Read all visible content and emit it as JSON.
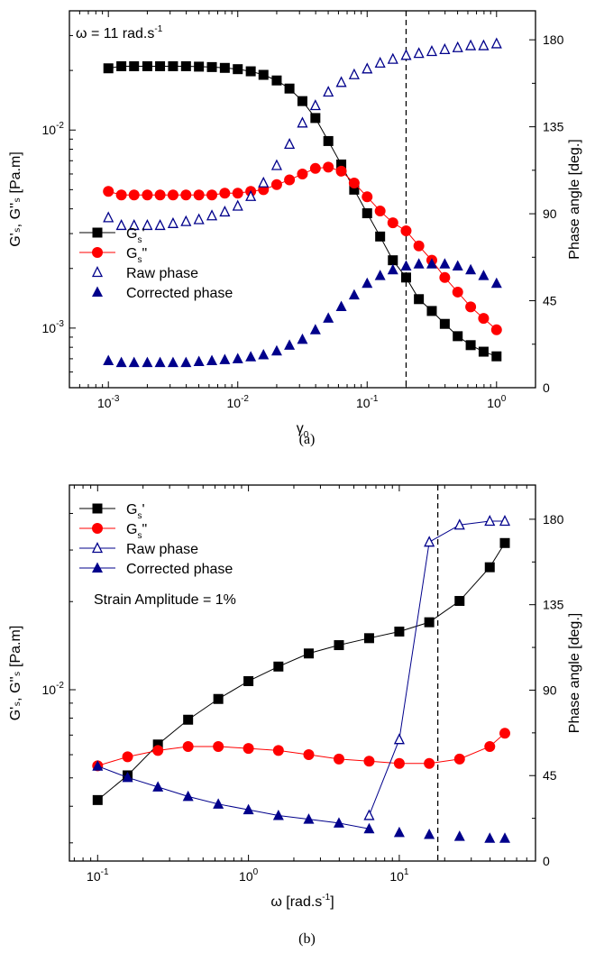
{
  "chart_data": [
    {
      "type": "scatter",
      "panel_label": "(a)",
      "annotation": "ω = 11 rad.s",
      "annotation_sup": "-1",
      "x_scale": "log",
      "y_scale": "log",
      "xlim": [
        0.0005,
        2
      ],
      "ylim": [
        0.0005,
        0.04
      ],
      "y2lim": [
        0,
        195
      ],
      "x_ticks": [
        0.001,
        0.01,
        0.1,
        1
      ],
      "y_ticks": [
        0.001,
        0.01
      ],
      "y2_ticks": [
        0,
        45,
        90,
        135,
        180
      ],
      "xlabel": "γ",
      "xlabel_sub": "0",
      "ylabel": "G'ₛ, G''ₛ [Pa.m]",
      "y2label": "Phase angle [deg.]",
      "vline_x": 0.2,
      "legend_position": "center-left",
      "series": [
        {
          "name": "Gs'",
          "axis": "left",
          "marker": "square",
          "color": "#000000",
          "line": true,
          "x": [
            0.001,
            0.00126,
            0.00158,
            0.002,
            0.00251,
            0.00316,
            0.00398,
            0.00501,
            0.00631,
            0.00794,
            0.01,
            0.0126,
            0.0158,
            0.02,
            0.0251,
            0.0316,
            0.0398,
            0.0501,
            0.0631,
            0.0794,
            0.1,
            0.126,
            0.158,
            0.2,
            0.251,
            0.316,
            0.398,
            0.501,
            0.631,
            0.794,
            1.0
          ],
          "values": [
            0.0205,
            0.021,
            0.021,
            0.021,
            0.021,
            0.021,
            0.021,
            0.0209,
            0.0208,
            0.0206,
            0.0203,
            0.0198,
            0.019,
            0.0178,
            0.0162,
            0.014,
            0.0115,
            0.0088,
            0.0067,
            0.005,
            0.0038,
            0.0029,
            0.0022,
            0.0018,
            0.0014,
            0.00122,
            0.00105,
            0.00091,
            0.00082,
            0.00076,
            0.00072
          ]
        },
        {
          "name": "Gs\"",
          "axis": "left",
          "marker": "circle",
          "color": "#ff0000",
          "line": true,
          "x": [
            0.001,
            0.00126,
            0.00158,
            0.002,
            0.00251,
            0.00316,
            0.00398,
            0.00501,
            0.00631,
            0.00794,
            0.01,
            0.0126,
            0.0158,
            0.02,
            0.0251,
            0.0316,
            0.0398,
            0.0501,
            0.0631,
            0.0794,
            0.1,
            0.126,
            0.158,
            0.2,
            0.251,
            0.316,
            0.398,
            0.501,
            0.631,
            0.794,
            1.0
          ],
          "values": [
            0.0049,
            0.0047,
            0.0047,
            0.0047,
            0.0047,
            0.0047,
            0.0047,
            0.0047,
            0.0047,
            0.0048,
            0.0048,
            0.0049,
            0.005,
            0.0053,
            0.0056,
            0.006,
            0.0064,
            0.0065,
            0.0062,
            0.0054,
            0.0046,
            0.0039,
            0.0034,
            0.0031,
            0.0026,
            0.0022,
            0.0018,
            0.00152,
            0.00128,
            0.00112,
            0.00098
          ]
        },
        {
          "name": "Raw phase",
          "axis": "right",
          "marker": "triangle-open",
          "color": "#00008b",
          "line": false,
          "x": [
            0.001,
            0.00126,
            0.00158,
            0.002,
            0.00251,
            0.00316,
            0.00398,
            0.00501,
            0.00631,
            0.00794,
            0.01,
            0.0126,
            0.0158,
            0.02,
            0.0251,
            0.0316,
            0.0398,
            0.0501,
            0.0631,
            0.0794,
            0.1,
            0.126,
            0.158,
            0.2,
            0.251,
            0.316,
            0.398,
            0.501,
            0.631,
            0.794,
            1.0
          ],
          "values": [
            88,
            84,
            84,
            84,
            84,
            85,
            86,
            87,
            89,
            91,
            94,
            99,
            106,
            115,
            126,
            137,
            146,
            153,
            158,
            162,
            165,
            168,
            170,
            172,
            173,
            174,
            175,
            176,
            177,
            177,
            178
          ]
        },
        {
          "name": "Corrected phase",
          "axis": "right",
          "marker": "triangle",
          "color": "#00008b",
          "line": false,
          "x": [
            0.001,
            0.00126,
            0.00158,
            0.002,
            0.00251,
            0.00316,
            0.00398,
            0.00501,
            0.00631,
            0.00794,
            0.01,
            0.0126,
            0.0158,
            0.02,
            0.0251,
            0.0316,
            0.0398,
            0.0501,
            0.0631,
            0.0794,
            0.1,
            0.126,
            0.158,
            0.2,
            0.251,
            0.316,
            0.398,
            0.501,
            0.631,
            0.794,
            1.0
          ],
          "values": [
            14,
            13,
            13,
            13,
            13,
            13,
            13,
            13.5,
            14,
            14.5,
            15,
            16,
            17,
            19,
            22,
            25,
            30,
            36,
            42,
            48,
            54,
            58,
            61,
            63,
            64,
            64,
            64,
            63,
            61,
            58,
            54
          ]
        }
      ]
    },
    {
      "type": "line",
      "panel_label": "(b)",
      "annotation": "Strain Amplitude = 1%",
      "x_scale": "log",
      "y_scale": "log",
      "xlim": [
        0.065,
        80
      ],
      "ylim": [
        0.0026,
        0.05
      ],
      "y2lim": [
        0,
        198
      ],
      "x_ticks": [
        0.1,
        1,
        10
      ],
      "y_ticks": [
        0.01
      ],
      "y2_ticks": [
        0,
        45,
        90,
        135,
        180
      ],
      "xlabel": "ω [rad.s",
      "xlabel_sup": "-1",
      "xlabel_end": "]",
      "ylabel": "G'ₛ, G''ₛ [Pa.m]",
      "y2label": "Phase angle [deg.]",
      "vline_x": 18,
      "legend_position": "top-left",
      "series": [
        {
          "name": "Gs'",
          "axis": "left",
          "marker": "square",
          "color": "#000000",
          "line": true,
          "x": [
            0.1,
            0.158,
            0.251,
            0.398,
            0.631,
            1.0,
            1.58,
            2.51,
            3.98,
            6.31,
            10.0,
            15.8,
            25.1,
            39.8,
            50.1
          ],
          "values": [
            0.0042,
            0.0051,
            0.0065,
            0.0079,
            0.0093,
            0.0107,
            0.012,
            0.0133,
            0.0142,
            0.015,
            0.0158,
            0.017,
            0.0201,
            0.0262,
            0.0317
          ]
        },
        {
          "name": "Gs\"",
          "axis": "left",
          "marker": "circle",
          "color": "#ff0000",
          "line": true,
          "x": [
            0.1,
            0.158,
            0.251,
            0.398,
            0.631,
            1.0,
            1.58,
            2.51,
            3.98,
            6.31,
            10.0,
            15.8,
            25.1,
            39.8,
            50.1
          ],
          "values": [
            0.0055,
            0.0059,
            0.0062,
            0.0064,
            0.0064,
            0.0063,
            0.0062,
            0.006,
            0.0058,
            0.0057,
            0.0056,
            0.0056,
            0.0058,
            0.0064,
            0.0071
          ]
        },
        {
          "name": "Raw phase",
          "axis": "right",
          "marker": "triangle-open",
          "color": "#00008b",
          "line": true,
          "x": [
            6.31,
            10.0,
            15.8,
            25.1,
            39.8,
            50.1
          ],
          "values": [
            24,
            64,
            168,
            177,
            179,
            179
          ]
        },
        {
          "name": "Corrected phase",
          "axis": "right",
          "marker": "triangle",
          "color": "#00008b",
          "line": true,
          "line_to": 6.31,
          "x": [
            0.1,
            0.158,
            0.251,
            0.398,
            0.631,
            1.0,
            1.58,
            2.51,
            3.98,
            6.31,
            10.0,
            15.8,
            25.1,
            39.8,
            50.1
          ],
          "values": [
            50,
            44,
            39,
            34,
            30,
            27,
            24,
            22,
            20,
            17,
            15,
            14,
            13,
            12,
            12
          ]
        }
      ]
    }
  ]
}
